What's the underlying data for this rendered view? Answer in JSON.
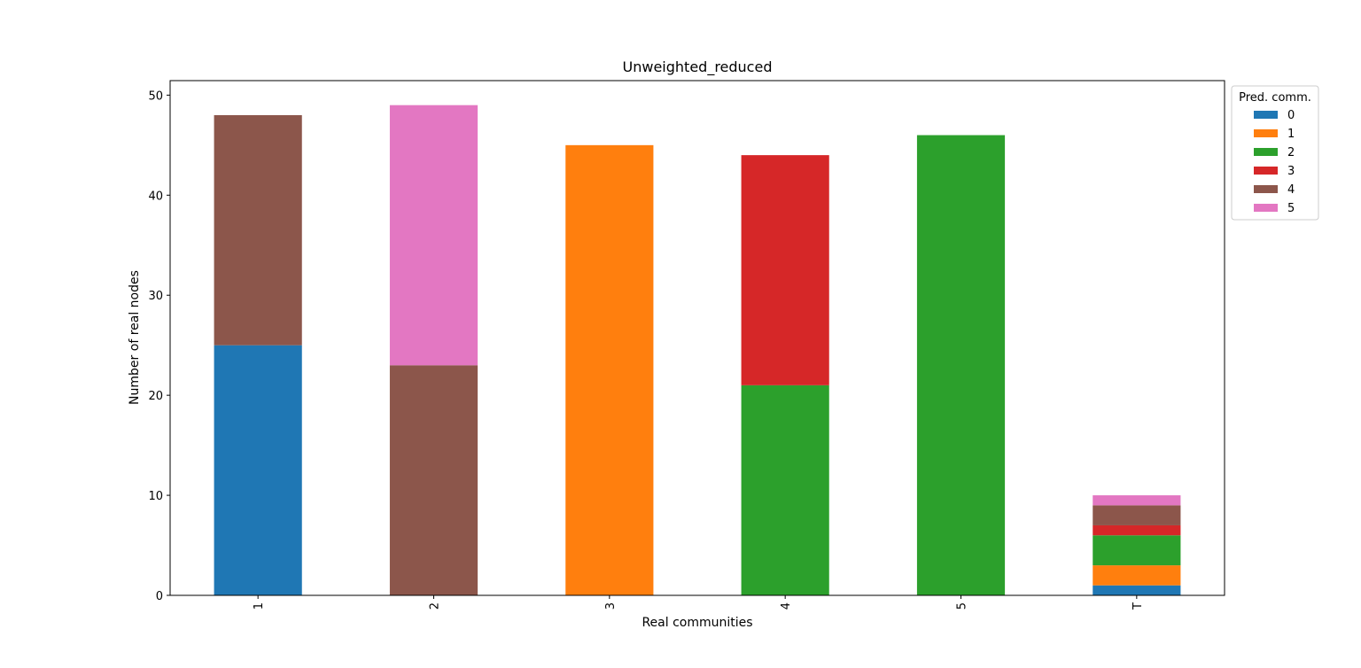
{
  "chart_data": {
    "type": "bar",
    "stacked": true,
    "title": "Unweighted_reduced",
    "xlabel": "Real communities",
    "ylabel": "Number of real nodes",
    "categories": [
      "1",
      "2",
      "3",
      "4",
      "5",
      "T"
    ],
    "ylim": [
      0,
      51.45
    ],
    "yticks": [
      0,
      10,
      20,
      30,
      40,
      50
    ],
    "grid": false,
    "legend": {
      "title": "Pred. comm.",
      "placement": "outside-upper-right"
    },
    "series": [
      {
        "name": "0",
        "color": "#1f77b4",
        "values": [
          25,
          0,
          0,
          0,
          0,
          1
        ]
      },
      {
        "name": "1",
        "color": "#ff7f0e",
        "values": [
          0,
          0,
          45,
          0,
          0,
          2
        ]
      },
      {
        "name": "2",
        "color": "#2ca02c",
        "values": [
          0,
          0,
          0,
          21,
          46,
          3
        ]
      },
      {
        "name": "3",
        "color": "#d62728",
        "values": [
          0,
          0,
          0,
          23,
          0,
          1
        ]
      },
      {
        "name": "4",
        "color": "#8c564b",
        "values": [
          23,
          23,
          0,
          0,
          0,
          2
        ]
      },
      {
        "name": "5",
        "color": "#e377c2",
        "values": [
          0,
          26,
          0,
          0,
          0,
          1
        ]
      }
    ]
  }
}
